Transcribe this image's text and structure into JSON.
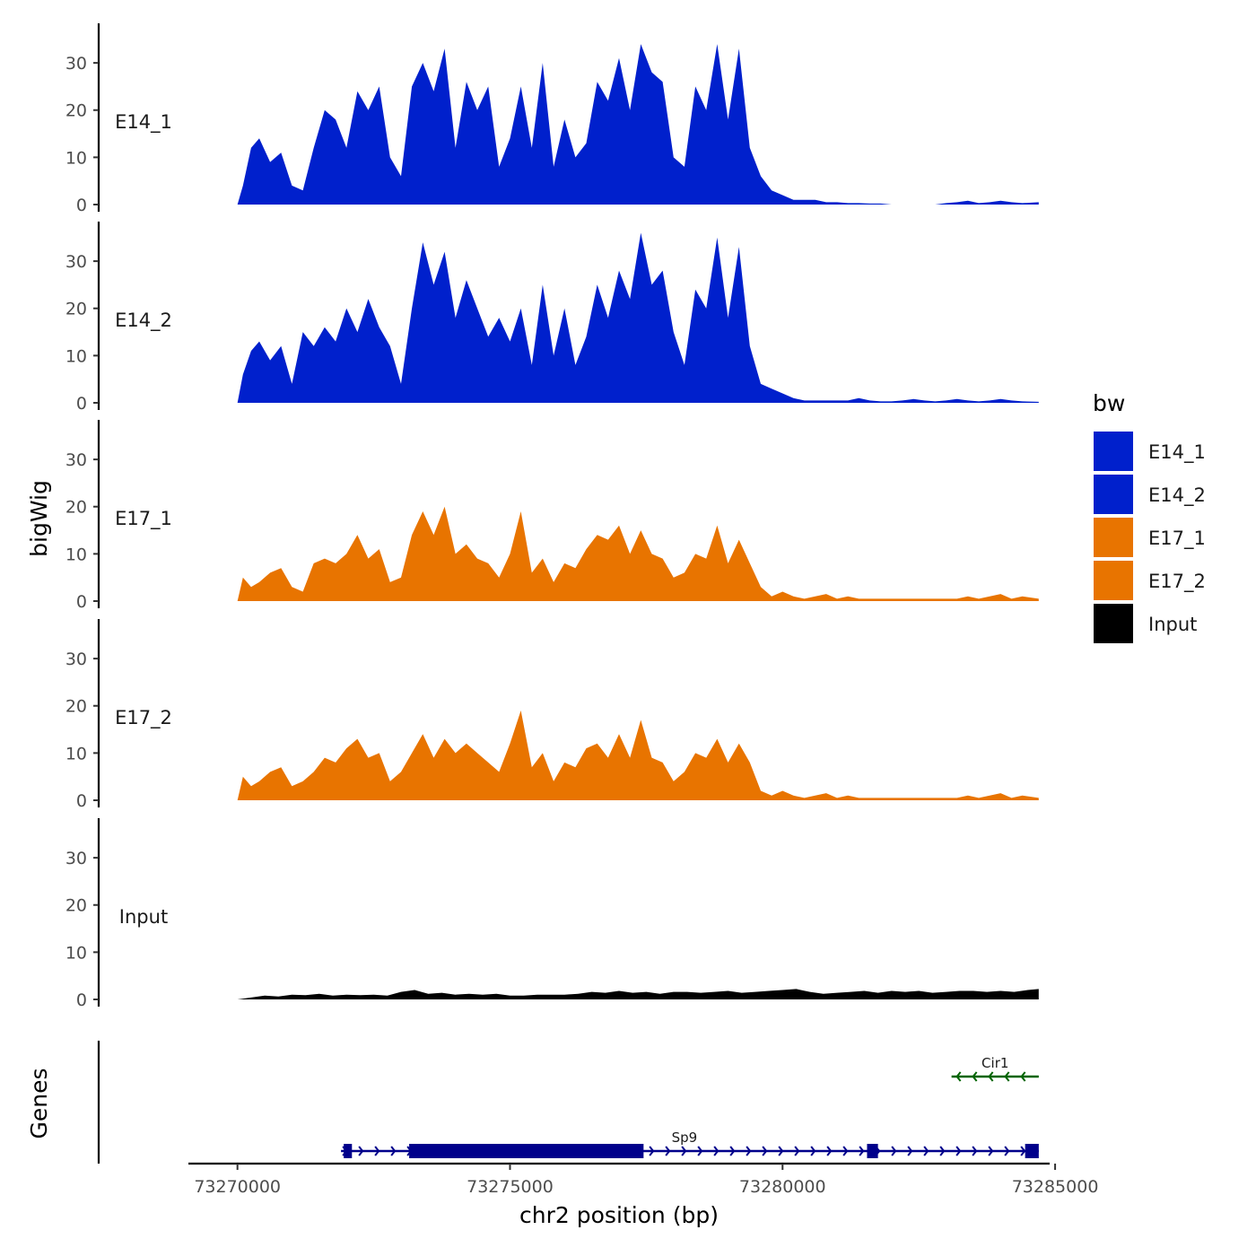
{
  "chart_data": {
    "type": "area",
    "xlabel": "chr2 position (bp)",
    "ylabel": "bigWig",
    "genes_label": "Genes",
    "xlim": [
      73269100,
      73284900
    ],
    "ylim": [
      0,
      38
    ],
    "x_ticks": [
      73270000,
      73275000,
      73280000,
      73285000
    ],
    "x_tick_labels": [
      "73270000",
      "73275000",
      "73280000",
      "73285000"
    ],
    "y_ticks": [
      0,
      10,
      20,
      30
    ],
    "y_tick_labels": [
      "0",
      "10",
      "20",
      "30"
    ],
    "legend": {
      "title": "bw",
      "position": "right",
      "entries": [
        {
          "label": "E14_1",
          "color": "#0020cc"
        },
        {
          "label": "E14_2",
          "color": "#0020cc"
        },
        {
          "label": "E17_1",
          "color": "#e87400"
        },
        {
          "label": "E17_2",
          "color": "#e87400"
        },
        {
          "label": "Input",
          "color": "#000000"
        }
      ]
    },
    "tracks": [
      {
        "name": "E14_1",
        "color": "#0020cc",
        "x": [
          73270000,
          73270100,
          73270250,
          73270400,
          73270600,
          73270800,
          73271000,
          73271200,
          73271400,
          73271600,
          73271800,
          73272000,
          73272200,
          73272400,
          73272600,
          73272800,
          73273000,
          73273200,
          73273400,
          73273600,
          73273800,
          73274000,
          73274200,
          73274400,
          73274600,
          73274800,
          73275000,
          73275200,
          73275400,
          73275600,
          73275800,
          73276000,
          73276200,
          73276400,
          73276600,
          73276800,
          73277000,
          73277200,
          73277400,
          73277600,
          73277800,
          73278000,
          73278200,
          73278400,
          73278600,
          73278800,
          73279000,
          73279200,
          73279400,
          73279600,
          73279800,
          73280000,
          73280200,
          73280400,
          73280600,
          73280800,
          73281000,
          73281200,
          73281400,
          73281600,
          73281800,
          73282000,
          73282200,
          73282400,
          73282600,
          73282800,
          73283000,
          73283200,
          73283400,
          73283600,
          73283800,
          73284000,
          73284200,
          73284400,
          73284700
        ],
        "values": [
          0,
          4,
          12,
          14,
          9,
          11,
          4,
          3,
          12,
          20,
          18,
          12,
          24,
          20,
          25,
          10,
          6,
          25,
          30,
          24,
          33,
          12,
          26,
          20,
          25,
          8,
          14,
          25,
          12,
          30,
          8,
          18,
          10,
          13,
          26,
          22,
          31,
          20,
          34,
          28,
          26,
          10,
          8,
          25,
          20,
          34,
          18,
          33,
          12,
          6,
          3,
          2,
          1,
          1,
          1,
          0.5,
          0.5,
          0.3,
          0.3,
          0.2,
          0.2,
          0,
          0,
          0,
          0,
          0,
          0.3,
          0.5,
          0.8,
          0.3,
          0.5,
          0.8,
          0.5,
          0.3,
          0.5
        ]
      },
      {
        "name": "E14_2",
        "color": "#0020cc",
        "x": [
          73270000,
          73270100,
          73270250,
          73270400,
          73270600,
          73270800,
          73271000,
          73271200,
          73271400,
          73271600,
          73271800,
          73272000,
          73272200,
          73272400,
          73272600,
          73272800,
          73273000,
          73273200,
          73273400,
          73273600,
          73273800,
          73274000,
          73274200,
          73274400,
          73274600,
          73274800,
          73275000,
          73275200,
          73275400,
          73275600,
          73275800,
          73276000,
          73276200,
          73276400,
          73276600,
          73276800,
          73277000,
          73277200,
          73277400,
          73277600,
          73277800,
          73278000,
          73278200,
          73278400,
          73278600,
          73278800,
          73279000,
          73279200,
          73279400,
          73279600,
          73279800,
          73280000,
          73280200,
          73280400,
          73280600,
          73280800,
          73281000,
          73281200,
          73281400,
          73281600,
          73281800,
          73282000,
          73282200,
          73282400,
          73282600,
          73282800,
          73283000,
          73283200,
          73283400,
          73283600,
          73283800,
          73284000,
          73284200,
          73284400,
          73284700
        ],
        "values": [
          0,
          6,
          11,
          13,
          9,
          12,
          4,
          15,
          12,
          16,
          13,
          20,
          15,
          22,
          16,
          12,
          4,
          20,
          34,
          25,
          32,
          18,
          26,
          20,
          14,
          18,
          13,
          20,
          8,
          25,
          10,
          20,
          8,
          14,
          25,
          18,
          28,
          22,
          36,
          25,
          28,
          15,
          8,
          24,
          20,
          35,
          18,
          33,
          12,
          4,
          3,
          2,
          1,
          0.5,
          0.5,
          0.5,
          0.5,
          0.5,
          1,
          0.5,
          0.3,
          0.3,
          0.5,
          0.8,
          0.5,
          0.3,
          0.5,
          0.8,
          0.5,
          0.3,
          0.5,
          0.8,
          0.5,
          0.3,
          0.2
        ]
      },
      {
        "name": "E17_1",
        "color": "#e87400",
        "x": [
          73270000,
          73270100,
          73270250,
          73270400,
          73270600,
          73270800,
          73271000,
          73271200,
          73271400,
          73271600,
          73271800,
          73272000,
          73272200,
          73272400,
          73272600,
          73272800,
          73273000,
          73273200,
          73273400,
          73273600,
          73273800,
          73274000,
          73274200,
          73274400,
          73274600,
          73274800,
          73275000,
          73275200,
          73275400,
          73275600,
          73275800,
          73276000,
          73276200,
          73276400,
          73276600,
          73276800,
          73277000,
          73277200,
          73277400,
          73277600,
          73277800,
          73278000,
          73278200,
          73278400,
          73278600,
          73278800,
          73279000,
          73279200,
          73279400,
          73279600,
          73279800,
          73280000,
          73280200,
          73280400,
          73280600,
          73280800,
          73281000,
          73281200,
          73281400,
          73281600,
          73281800,
          73282000,
          73282200,
          73282400,
          73282600,
          73282800,
          73283000,
          73283200,
          73283400,
          73283600,
          73283800,
          73284000,
          73284200,
          73284400,
          73284700
        ],
        "values": [
          0,
          5,
          3,
          4,
          6,
          7,
          3,
          2,
          8,
          9,
          8,
          10,
          14,
          9,
          11,
          4,
          5,
          14,
          19,
          14,
          20,
          10,
          12,
          9,
          8,
          5,
          10,
          19,
          6,
          9,
          4,
          8,
          7,
          11,
          14,
          13,
          16,
          10,
          15,
          10,
          9,
          5,
          6,
          10,
          9,
          16,
          8,
          13,
          8,
          3,
          1,
          2,
          1,
          0.5,
          1,
          1.5,
          0.5,
          1,
          0.5,
          0.5,
          0.5,
          0.5,
          0.5,
          0.5,
          0.5,
          0.5,
          0.5,
          0.5,
          1,
          0.5,
          1,
          1.5,
          0.5,
          1,
          0.5
        ]
      },
      {
        "name": "E17_2",
        "color": "#e87400",
        "x": [
          73270000,
          73270100,
          73270250,
          73270400,
          73270600,
          73270800,
          73271000,
          73271200,
          73271400,
          73271600,
          73271800,
          73272000,
          73272200,
          73272400,
          73272600,
          73272800,
          73273000,
          73273200,
          73273400,
          73273600,
          73273800,
          73274000,
          73274200,
          73274400,
          73274600,
          73274800,
          73275000,
          73275200,
          73275400,
          73275600,
          73275800,
          73276000,
          73276200,
          73276400,
          73276600,
          73276800,
          73277000,
          73277200,
          73277400,
          73277600,
          73277800,
          73278000,
          73278200,
          73278400,
          73278600,
          73278800,
          73279000,
          73279200,
          73279400,
          73279600,
          73279800,
          73280000,
          73280200,
          73280400,
          73280600,
          73280800,
          73281000,
          73281200,
          73281400,
          73281600,
          73281800,
          73282000,
          73282200,
          73282400,
          73282600,
          73282800,
          73283000,
          73283200,
          73283400,
          73283600,
          73283800,
          73284000,
          73284200,
          73284400,
          73284700
        ],
        "values": [
          0,
          5,
          3,
          4,
          6,
          7,
          3,
          4,
          6,
          9,
          8,
          11,
          13,
          9,
          10,
          4,
          6,
          10,
          14,
          9,
          13,
          10,
          12,
          10,
          8,
          6,
          12,
          19,
          7,
          10,
          4,
          8,
          7,
          11,
          12,
          9,
          14,
          9,
          17,
          9,
          8,
          4,
          6,
          10,
          9,
          13,
          8,
          12,
          8,
          2,
          1,
          2,
          1,
          0.5,
          1,
          1.5,
          0.5,
          1,
          0.5,
          0.5,
          0.5,
          0.5,
          0.5,
          0.5,
          0.5,
          0.5,
          0.5,
          0.5,
          1,
          0.5,
          1,
          1.5,
          0.5,
          1,
          0.5
        ]
      },
      {
        "name": "Input",
        "color": "#000000",
        "x": [
          73270000,
          73270250,
          73270500,
          73270750,
          73271000,
          73271250,
          73271500,
          73271750,
          73272000,
          73272250,
          73272500,
          73272750,
          73273000,
          73273250,
          73273500,
          73273750,
          73274000,
          73274250,
          73274500,
          73274750,
          73275000,
          73275250,
          73275500,
          73275750,
          73276000,
          73276250,
          73276500,
          73276750,
          73277000,
          73277250,
          73277500,
          73277750,
          73278000,
          73278250,
          73278500,
          73278750,
          73279000,
          73279250,
          73279500,
          73279750,
          73280000,
          73280250,
          73280500,
          73280750,
          73281000,
          73281250,
          73281500,
          73281750,
          73282000,
          73282250,
          73282500,
          73282750,
          73283000,
          73283250,
          73283500,
          73283750,
          73284000,
          73284250,
          73284500,
          73284700
        ],
        "values": [
          0,
          0.4,
          0.8,
          0.6,
          1,
          0.9,
          1.2,
          0.8,
          1,
          0.9,
          1,
          0.8,
          1.6,
          2,
          1.2,
          1.4,
          1,
          1.2,
          1,
          1.2,
          0.8,
          0.8,
          1,
          1,
          1,
          1.2,
          1.6,
          1.4,
          1.8,
          1.4,
          1.6,
          1.2,
          1.6,
          1.6,
          1.4,
          1.6,
          1.8,
          1.4,
          1.6,
          1.8,
          2,
          2.2,
          1.6,
          1.2,
          1.4,
          1.6,
          1.8,
          1.4,
          1.8,
          1.6,
          1.8,
          1.4,
          1.6,
          1.8,
          1.8,
          1.6,
          1.8,
          1.6,
          2,
          2.2
        ]
      }
    ],
    "genes": [
      {
        "name": "Cir1",
        "color": "#006400",
        "strand": "-",
        "start": 73283100,
        "end": 73284700,
        "exons": []
      },
      {
        "name": "Sp9",
        "color": "#00008b",
        "strand": "+",
        "start": 73271900,
        "end": 73284700,
        "exons": [
          [
            73271950,
            73272100
          ],
          [
            73273150,
            73277450
          ],
          [
            73281550,
            73281750
          ],
          [
            73284450,
            73284700
          ]
        ]
      }
    ]
  }
}
